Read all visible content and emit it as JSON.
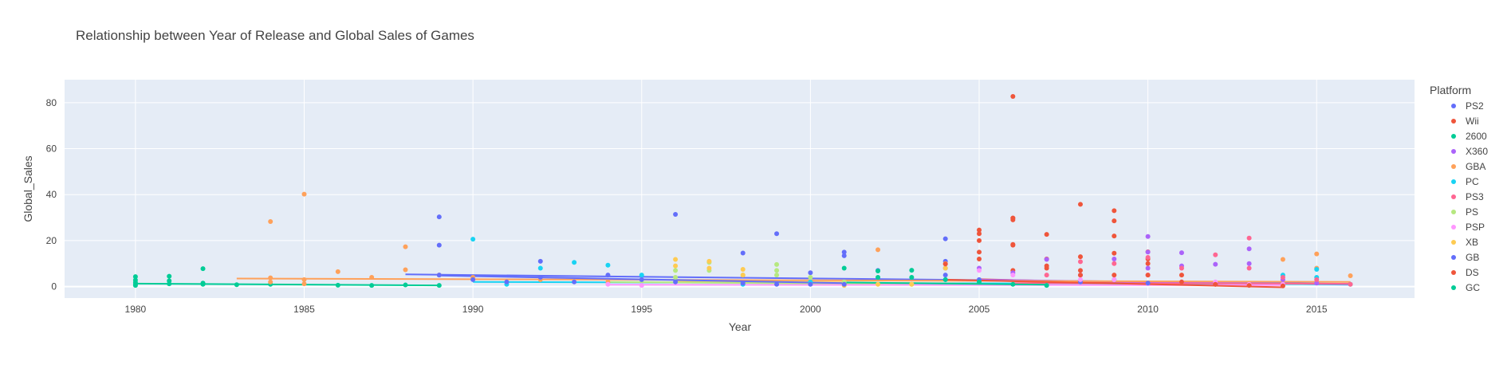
{
  "chart_data": {
    "type": "scatter",
    "title": "Relationship between Year of Release and Global Sales of Games",
    "xlabel": "Year",
    "ylabel": "Global_Sales",
    "xlim": [
      1977.9,
      2017.9
    ],
    "ylim": [
      -5,
      90
    ],
    "x_ticks": [
      1980,
      1985,
      1990,
      1995,
      2000,
      2005,
      2010,
      2015
    ],
    "y_ticks": [
      0,
      20,
      40,
      60,
      80
    ],
    "grid": true,
    "legend_title": "Platform",
    "legend_position": "right",
    "series": [
      {
        "name": "PS2",
        "color": "#636efa",
        "points": [
          [
            1989,
            30.3
          ],
          [
            1989,
            18
          ],
          [
            1992,
            11
          ],
          [
            1996,
            31.4
          ],
          [
            1998,
            14.6
          ],
          [
            1999,
            23
          ],
          [
            2000,
            6
          ],
          [
            2001,
            15
          ],
          [
            2001,
            13.4
          ],
          [
            2002,
            7
          ],
          [
            2004,
            20.8
          ],
          [
            2004,
            11
          ],
          [
            2004,
            8
          ],
          [
            2004,
            5
          ],
          [
            2005,
            3
          ],
          [
            2008,
            2
          ],
          [
            2010,
            1.5
          ],
          [
            2012,
            1
          ],
          [
            2014,
            1
          ]
        ],
        "trend": [
          [
            1988,
            5.3
          ],
          [
            2016,
            1.2
          ]
        ]
      },
      {
        "name": "Wii",
        "color": "#EF553B",
        "points": [
          [
            2006,
            82.7
          ],
          [
            2006,
            29.8
          ],
          [
            2006,
            29
          ],
          [
            2006,
            18.3
          ],
          [
            2006,
            7
          ],
          [
            2008,
            35.8
          ],
          [
            2008,
            13
          ],
          [
            2008,
            7
          ],
          [
            2009,
            33
          ],
          [
            2009,
            28.6
          ],
          [
            2009,
            22
          ],
          [
            2009,
            14.5
          ],
          [
            2010,
            15.1
          ],
          [
            2010,
            12
          ],
          [
            2010,
            10
          ],
          [
            2007,
            22.7
          ],
          [
            2007,
            12
          ],
          [
            2007,
            8
          ],
          [
            2011,
            5
          ],
          [
            2012,
            1
          ],
          [
            2013,
            1
          ]
        ],
        "trend": [
          [
            2005,
            3.2
          ],
          [
            2013,
            0.5
          ]
        ]
      },
      {
        "name": "2600",
        "color": "#00cc96",
        "points": [
          [
            1980,
            4.3
          ],
          [
            1980,
            2.8
          ],
          [
            1980,
            1.8
          ],
          [
            1980,
            1
          ],
          [
            1980,
            0.5
          ],
          [
            1981,
            4.5
          ],
          [
            1981,
            2.5
          ],
          [
            1981,
            1.2
          ],
          [
            1982,
            7.8
          ],
          [
            1982,
            1.5
          ],
          [
            1982,
            1
          ],
          [
            1983,
            0.8
          ],
          [
            1984,
            1
          ],
          [
            1986,
            0.6
          ],
          [
            1987,
            0.5
          ],
          [
            1988,
            0.7
          ],
          [
            1989,
            0.5
          ]
        ],
        "trend": [
          [
            1980,
            1.3
          ],
          [
            1989,
            0.5
          ]
        ]
      },
      {
        "name": "X360",
        "color": "#ab63fa",
        "points": [
          [
            2005,
            8
          ],
          [
            2006,
            6
          ],
          [
            2007,
            11.8
          ],
          [
            2008,
            5
          ],
          [
            2009,
            12
          ],
          [
            2010,
            21.8
          ],
          [
            2010,
            15
          ],
          [
            2010,
            8
          ],
          [
            2011,
            14.7
          ],
          [
            2011,
            9
          ],
          [
            2012,
            9.7
          ],
          [
            2013,
            16.4
          ],
          [
            2013,
            10
          ],
          [
            2014,
            3
          ],
          [
            2015,
            1.5
          ]
        ],
        "trend": [
          [
            2005,
            3
          ],
          [
            2016,
            0.8
          ]
        ]
      },
      {
        "name": "GBA",
        "color": "#FFA15A",
        "points": [
          [
            1984,
            28.3
          ],
          [
            1984,
            3.8
          ],
          [
            1984,
            2
          ],
          [
            1985,
            40.2
          ],
          [
            1985,
            3
          ],
          [
            1985,
            1.2
          ],
          [
            1986,
            6.5
          ],
          [
            1987,
            4
          ],
          [
            1988,
            17.3
          ],
          [
            1988,
            7.3
          ],
          [
            1989,
            5
          ],
          [
            1990,
            4
          ],
          [
            1992,
            3
          ],
          [
            1994,
            2
          ],
          [
            2002,
            16
          ],
          [
            2004,
            10
          ],
          [
            2014,
            11.8
          ],
          [
            2015,
            14.2
          ],
          [
            2015,
            8
          ],
          [
            2016,
            4.7
          ]
        ],
        "trend": [
          [
            1983,
            3.5
          ],
          [
            2016,
            2
          ]
        ]
      },
      {
        "name": "PC",
        "color": "#19d3f3",
        "points": [
          [
            1990,
            20.6
          ],
          [
            1991,
            1
          ],
          [
            1992,
            8
          ],
          [
            1993,
            10.5
          ],
          [
            1994,
            9.3
          ],
          [
            1995,
            5
          ],
          [
            1998,
            1
          ],
          [
            2000,
            2
          ],
          [
            2004,
            3
          ],
          [
            2009,
            3
          ],
          [
            2014,
            5
          ],
          [
            2015,
            7.5
          ],
          [
            2015,
            4
          ],
          [
            2016,
            1
          ]
        ],
        "trend": [
          [
            1990,
            2
          ],
          [
            2016,
            1
          ]
        ]
      },
      {
        "name": "PS3",
        "color": "#FF6692",
        "points": [
          [
            2007,
            5
          ],
          [
            2008,
            10.8
          ],
          [
            2009,
            10
          ],
          [
            2010,
            12.7
          ],
          [
            2010,
            5
          ],
          [
            2011,
            8
          ],
          [
            2012,
            13.8
          ],
          [
            2013,
            21.1
          ],
          [
            2013,
            8
          ],
          [
            2014,
            4
          ],
          [
            2015,
            3
          ],
          [
            2016,
            1
          ]
        ],
        "trend": [
          [
            2006,
            1.5
          ],
          [
            2016,
            1.2
          ]
        ]
      },
      {
        "name": "PS",
        "color": "#B6E880",
        "points": [
          [
            1996,
            7
          ],
          [
            1996,
            4
          ],
          [
            1997,
            10.5
          ],
          [
            1997,
            7
          ],
          [
            1998,
            5
          ],
          [
            1999,
            9.6
          ],
          [
            1999,
            7
          ],
          [
            1999,
            5
          ],
          [
            2000,
            4
          ],
          [
            2001,
            2
          ],
          [
            2003,
            1
          ]
        ],
        "trend": [
          [
            1994,
            2
          ],
          [
            2003,
            1
          ]
        ]
      },
      {
        "name": "PSP",
        "color": "#FF97FF",
        "points": [
          [
            1994,
            1
          ],
          [
            1995,
            0.5
          ],
          [
            2005,
            7
          ],
          [
            2006,
            5
          ],
          [
            2008,
            3
          ],
          [
            2009,
            3
          ],
          [
            2010,
            5
          ],
          [
            2011,
            2
          ],
          [
            2012,
            2
          ],
          [
            2013,
            1
          ],
          [
            2014,
            1
          ]
        ],
        "trend": [
          [
            1994,
            0.8
          ],
          [
            2014,
            0.6
          ]
        ]
      },
      {
        "name": "XB",
        "color": "#FECB52",
        "points": [
          [
            1996,
            11.8
          ],
          [
            1996,
            9
          ],
          [
            1997,
            11
          ],
          [
            1997,
            8
          ],
          [
            1998,
            7.5
          ],
          [
            1998,
            5
          ],
          [
            2001,
            0.5
          ],
          [
            2002,
            1
          ],
          [
            2003,
            1
          ],
          [
            2004,
            8
          ]
        ],
        "trend": [
          [
            1996,
            2.5
          ],
          [
            2005,
            1.2
          ]
        ]
      },
      {
        "name": "GB",
        "color": "#636efa",
        "points": [
          [
            1989,
            5
          ],
          [
            1990,
            3
          ],
          [
            1991,
            2
          ],
          [
            1992,
            4
          ],
          [
            1993,
            2
          ],
          [
            1994,
            5
          ],
          [
            1995,
            3
          ],
          [
            1996,
            2
          ],
          [
            1998,
            1.5
          ],
          [
            1999,
            1
          ],
          [
            2000,
            1
          ],
          [
            2001,
            1
          ]
        ],
        "trend": [
          [
            1989,
            4.8
          ],
          [
            2001,
            1.5
          ]
        ]
      },
      {
        "name": "DS",
        "color": "#EF553B",
        "points": [
          [
            2004,
            9.8
          ],
          [
            2005,
            24.6
          ],
          [
            2005,
            23
          ],
          [
            2005,
            20
          ],
          [
            2005,
            15
          ],
          [
            2005,
            12
          ],
          [
            2006,
            29.8
          ],
          [
            2006,
            18
          ],
          [
            2007,
            9
          ],
          [
            2008,
            5
          ],
          [
            2009,
            5
          ],
          [
            2010,
            5
          ],
          [
            2011,
            2
          ],
          [
            2012,
            1
          ],
          [
            2013,
            0.5
          ],
          [
            2014,
            0.3
          ]
        ],
        "trend": [
          [
            2004,
            3
          ],
          [
            2014,
            -0.3
          ]
        ]
      },
      {
        "name": "GC",
        "color": "#00cc96",
        "points": [
          [
            2001,
            8
          ],
          [
            2002,
            6.8
          ],
          [
            2002,
            4
          ],
          [
            2003,
            7.1
          ],
          [
            2003,
            4
          ],
          [
            2004,
            3
          ],
          [
            2005,
            2
          ],
          [
            2006,
            1
          ],
          [
            2007,
            0.5
          ]
        ],
        "trend": [
          [
            2001,
            1.8
          ],
          [
            2007,
            0.8
          ]
        ]
      }
    ]
  }
}
